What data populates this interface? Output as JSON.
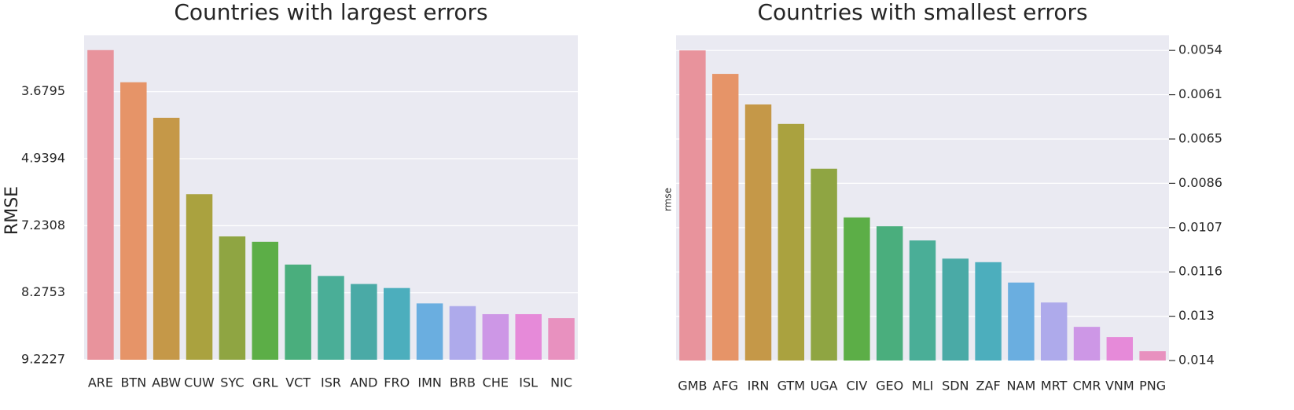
{
  "chart_data": [
    {
      "type": "bar",
      "title": "Countries with largest errors",
      "y_label": "RMSE",
      "y_axis_side": "left",
      "grid": true,
      "categories": [
        "ARE",
        "BTN",
        "ABW",
        "CUW",
        "SYC",
        "GRL",
        "VCT",
        "ISR",
        "AND",
        "FRO",
        "IMN",
        "BRB",
        "CHE",
        "ISL",
        "NIC"
      ],
      "values": [
        4.62,
        4.14,
        3.61,
        2.47,
        1.84,
        1.76,
        1.42,
        1.25,
        1.13,
        1.07,
        0.84,
        0.8,
        0.68,
        0.68,
        0.62
      ],
      "colors": [
        "#e8939c",
        "#e69468",
        "#c59848",
        "#aaa23f",
        "#8fa542",
        "#5cae47",
        "#4aae7d",
        "#4aae97",
        "#4aaaa6",
        "#4caebd",
        "#6aaee0",
        "#aeaaeb",
        "#cd97e6",
        "#e68ad9",
        "#e891bf"
      ],
      "ylim": [
        0,
        4.84
      ],
      "yticks": [
        {
          "value": 0,
          "label": "9.2227"
        },
        {
          "value": 1,
          "label": "8.2753"
        },
        {
          "value": 2,
          "label": "7.2308"
        },
        {
          "value": 3,
          "label": "4.9394"
        },
        {
          "value": 4,
          "label": "3.6795"
        }
      ]
    },
    {
      "type": "bar",
      "title": "Countries with smallest errors",
      "y_label": "rmse",
      "y_axis_side": "right",
      "grid": true,
      "categories": [
        "GMB",
        "AFG",
        "IRN",
        "GTM",
        "UGA",
        "CIV",
        "GEO",
        "MLI",
        "SDN",
        "ZAF",
        "NAM",
        "MRT",
        "CMR",
        "VNM",
        "PNG"
      ],
      "values": [
        7.0,
        6.47,
        5.78,
        5.34,
        4.33,
        3.23,
        3.03,
        2.71,
        2.3,
        2.22,
        1.76,
        1.31,
        0.76,
        0.53,
        0.21
      ],
      "colors": [
        "#e8939c",
        "#e69468",
        "#c59848",
        "#aaa23f",
        "#8fa542",
        "#5cae47",
        "#4aae7d",
        "#4aae97",
        "#4aaaa6",
        "#4caebd",
        "#6aaee0",
        "#aeaaeb",
        "#cd97e6",
        "#e68ad9",
        "#e891bf"
      ],
      "ylim": [
        0,
        7.34
      ],
      "yticks": [
        {
          "value": 0,
          "label": "0.014"
        },
        {
          "value": 1,
          "label": "0.013"
        },
        {
          "value": 2,
          "label": "0.0116"
        },
        {
          "value": 3,
          "label": "0.0107"
        },
        {
          "value": 4,
          "label": "0.0086"
        },
        {
          "value": 5,
          "label": "0.0065"
        },
        {
          "value": 6,
          "label": "0.0061"
        },
        {
          "value": 7,
          "label": "0.0054"
        }
      ]
    }
  ]
}
